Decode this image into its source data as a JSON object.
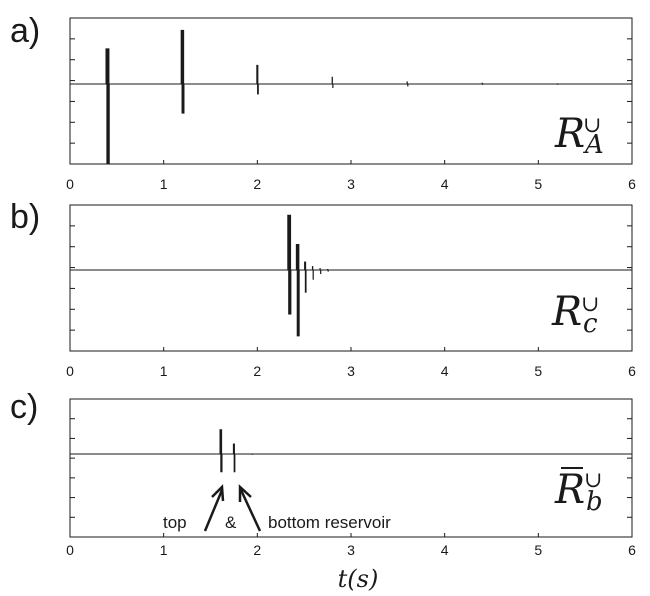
{
  "chart_data": [
    {
      "type": "spike",
      "panel": "a)",
      "label_main": "R",
      "label_sup": "∪",
      "label_sub": "A",
      "label_bar": false,
      "xlim": [
        0,
        6
      ],
      "ylim": [
        -1,
        1
      ],
      "x_ticks": [
        "0",
        "1",
        "2",
        "3",
        "4",
        "5",
        "6"
      ],
      "spikes": [
        {
          "t": 0.4,
          "up": 0.54,
          "down": -1.0
        },
        {
          "t": 1.2,
          "up": 0.82,
          "down": -0.37
        },
        {
          "t": 2.0,
          "up": 0.29,
          "down": -0.13
        },
        {
          "t": 2.8,
          "up": 0.11,
          "down": -0.05
        },
        {
          "t": 3.6,
          "up": 0.04,
          "down": -0.03
        },
        {
          "t": 4.4,
          "up": 0.02,
          "down": -0.01
        },
        {
          "t": 5.2,
          "up": 0.01,
          "down": -0.01
        }
      ]
    },
    {
      "type": "spike",
      "panel": "b)",
      "label_main": "R",
      "label_sup": "∪",
      "label_sub": "c",
      "label_bar": false,
      "xlim": [
        0,
        6
      ],
      "ylim": [
        -1,
        1
      ],
      "x_ticks": [
        "0",
        "1",
        "2",
        "3",
        "4",
        "5",
        "6"
      ],
      "spikes": [
        {
          "t": 2.34,
          "up": 0.85,
          "down": -0.55
        },
        {
          "t": 2.43,
          "up": 0.4,
          "down": -0.82
        },
        {
          "t": 2.51,
          "up": 0.13,
          "down": -0.28
        },
        {
          "t": 2.59,
          "up": 0.06,
          "down": -0.12
        },
        {
          "t": 2.67,
          "up": 0.03,
          "down": -0.05
        },
        {
          "t": 2.75,
          "up": 0.015,
          "down": -0.02
        }
      ]
    },
    {
      "type": "spike",
      "panel": "c)",
      "label_main": "R",
      "label_sup": "∪",
      "label_sub": "b",
      "label_bar": true,
      "xlim": [
        0,
        6
      ],
      "ylim": [
        -1,
        1
      ],
      "x_ticks": [
        "0",
        "1",
        "2",
        "3",
        "4",
        "5",
        "6"
      ],
      "spikes": [
        {
          "t": 1.61,
          "up": 0.45,
          "down": -0.22
        },
        {
          "t": 1.75,
          "up": 0.19,
          "down": -0.22
        },
        {
          "t": 1.94,
          "up": 0.01,
          "down": -0.01
        }
      ]
    }
  ],
  "xlabel": "t(s)",
  "annotation": {
    "left": "top",
    "middle": "&",
    "right": "bottom reservoir"
  },
  "colors": {
    "line": "#1a1a1a",
    "frame": "#1a1a1a",
    "background": "#ffffff"
  }
}
